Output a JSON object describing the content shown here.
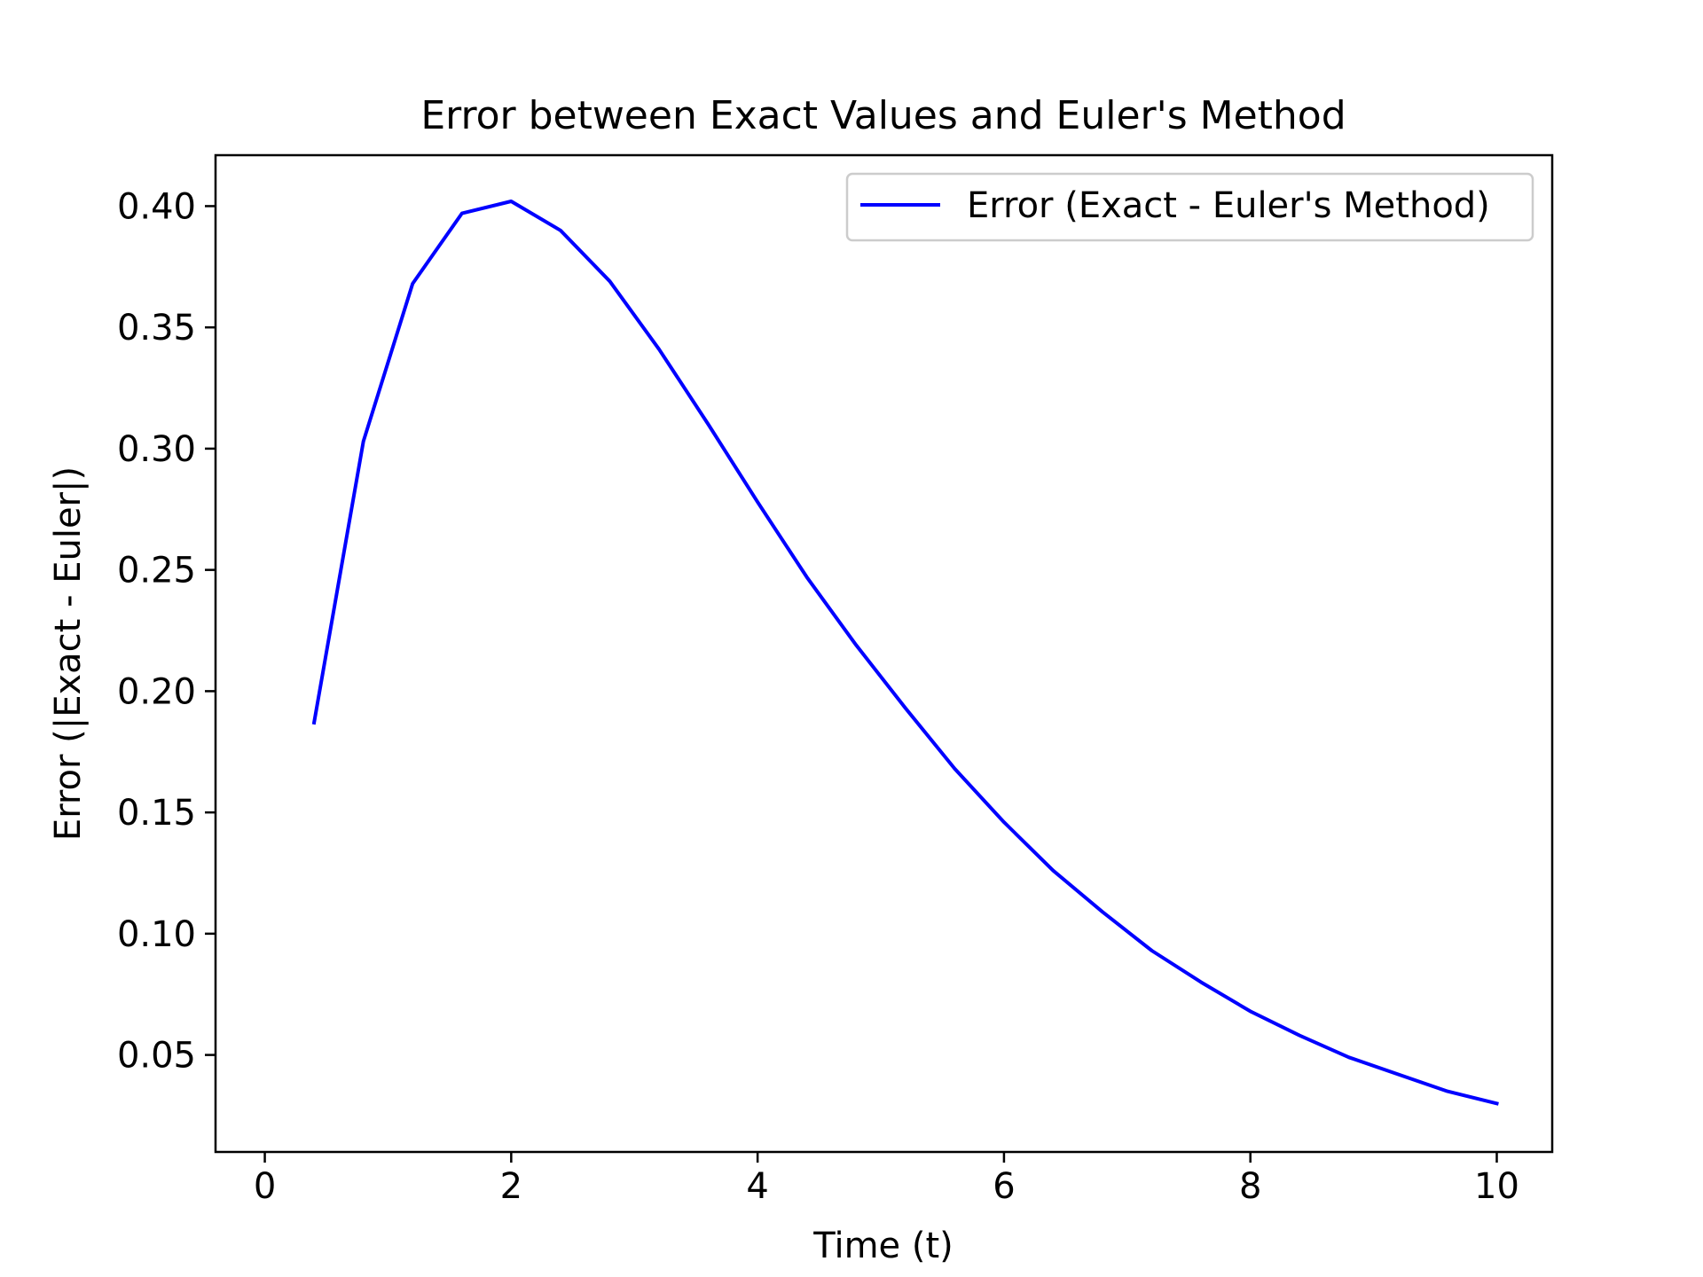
{
  "chart_data": {
    "type": "line",
    "title": "Error between Exact Values and Euler's Method",
    "xlabel": "Time (t)",
    "ylabel": "Error (|Exact - Euler|)",
    "xlim": [
      -0.4,
      10.45
    ],
    "ylim": [
      0.01,
      0.421
    ],
    "x_ticks": [
      0,
      2,
      4,
      6,
      8,
      10
    ],
    "x_tick_labels": [
      "0",
      "2",
      "4",
      "6",
      "8",
      "10"
    ],
    "y_ticks": [
      0.05,
      0.1,
      0.15,
      0.2,
      0.25,
      0.3,
      0.35,
      0.4
    ],
    "y_tick_labels": [
      "0.05",
      "0.10",
      "0.15",
      "0.20",
      "0.25",
      "0.30",
      "0.35",
      "0.40"
    ],
    "grid": false,
    "legend": {
      "placement": "upper right",
      "entries": [
        {
          "label": "Error (Exact - Euler's Method)",
          "color": "#0000ff"
        }
      ]
    },
    "series": [
      {
        "name": "Error (Exact - Euler's Method)",
        "color": "#0000ff",
        "x": [
          0.4,
          0.8,
          1.2,
          1.6,
          2.0,
          2.4,
          2.8,
          3.2,
          3.6,
          4.0,
          4.4,
          4.8,
          5.2,
          5.6,
          6.0,
          6.4,
          6.8,
          7.2,
          7.6,
          8.0,
          8.4,
          8.8,
          9.2,
          9.6,
          10.0
        ],
        "y": [
          0.187,
          0.303,
          0.368,
          0.397,
          0.402,
          0.39,
          0.369,
          0.341,
          0.31,
          0.278,
          0.247,
          0.219,
          0.193,
          0.168,
          0.146,
          0.126,
          0.109,
          0.093,
          0.08,
          0.068,
          0.058,
          0.049,
          0.042,
          0.035,
          0.03
        ]
      }
    ]
  }
}
